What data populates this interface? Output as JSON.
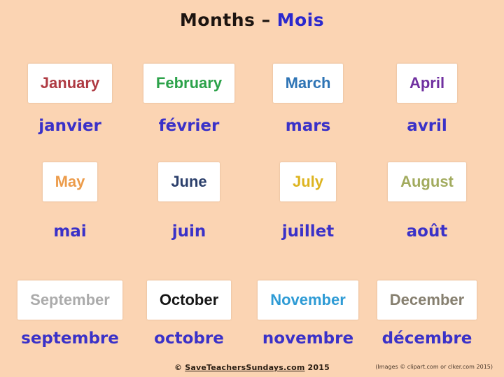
{
  "title": {
    "english_part": "Months –",
    "french_part": "Mois"
  },
  "colors": {
    "background": "#FBD4B3",
    "card_background": "#FFFFFF",
    "title_text": "#1C1410",
    "title_french": "#2B28CE",
    "french_text": "#3A31C8"
  },
  "months": [
    {
      "english": "January",
      "french": "janvier",
      "color": "#AF3B43"
    },
    {
      "english": "February",
      "french": "février",
      "color": "#2CA24A"
    },
    {
      "english": "March",
      "french": "mars",
      "color": "#2E74B5"
    },
    {
      "english": "April",
      "french": "avril",
      "color": "#7030A0"
    },
    {
      "english": "May",
      "french": "mai",
      "color": "#EC9C4B"
    },
    {
      "english": "June",
      "french": "juin",
      "color": "#2B3F6B"
    },
    {
      "english": "July",
      "french": "juillet",
      "color": "#DDB420"
    },
    {
      "english": "August",
      "french": "août",
      "color": "#A2AB5E"
    },
    {
      "english": "September",
      "french": "septembre",
      "color": "#ABABAB"
    },
    {
      "english": "October",
      "french": "octobre",
      "color": "#161616"
    },
    {
      "english": "November",
      "french": "novembre",
      "color": "#2E9BD5"
    },
    {
      "english": "December",
      "french": "décembre",
      "color": "#867F6F"
    }
  ],
  "footer": {
    "copyright": "©",
    "site": "SaveTeachersSundays.com",
    "year": "2015",
    "credit": "(Images © clipart.com or clker.com 2015)"
  }
}
